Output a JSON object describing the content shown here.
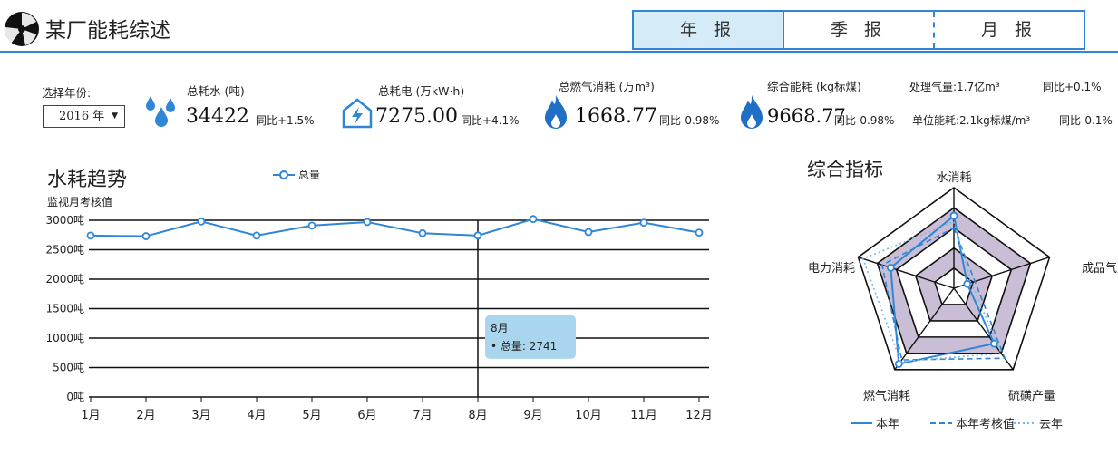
{
  "header": {
    "title": "某厂能耗综述",
    "tabs": [
      {
        "label": "年 报",
        "active": true
      },
      {
        "label": "季 报",
        "active": false
      },
      {
        "label": "月 报",
        "active": false
      }
    ]
  },
  "year_select": {
    "label": "选择年份:",
    "value": "2016 年"
  },
  "stats": {
    "water": {
      "label": "总耗水 (吨)",
      "value": "34422",
      "yoy": "同比+1.5%"
    },
    "power": {
      "label": "总耗电 (万kW·h)",
      "value": "7275.00",
      "yoy": "同比+4.1%"
    },
    "gas": {
      "label": "总燃气消耗 (万m³)",
      "value": "1668.77",
      "yoy": "同比-0.98%"
    },
    "total": {
      "label": "综合能耗 (kg标煤)",
      "value": "9668.77",
      "yoy": "同比-0.98%"
    },
    "processed_gas": {
      "label": "处理气量:1.7亿m³",
      "yoy": "同比+0.1%"
    },
    "unit_energy": {
      "label": "单位能耗:2.1kg标煤/m³",
      "yoy": "同比-0.1%"
    }
  },
  "colors": {
    "accent": "#2f86d6",
    "tab_active": "#d5ebf7",
    "tooltip": "#a9d6ee",
    "radar_fill": "#c9bed6"
  },
  "line_section": {
    "title": "水耗趋势",
    "subtitle": "监视月考核值",
    "legend": "总量"
  },
  "tooltip": {
    "title": "8月",
    "line": "• 总量: 2741"
  },
  "chart_data": [
    {
      "type": "line",
      "title": "水耗趋势",
      "ylabel": "监视月考核值",
      "categories": [
        "1月",
        "2月",
        "3月",
        "4月",
        "5月",
        "6月",
        "7月",
        "8月",
        "9月",
        "10月",
        "11月",
        "12月"
      ],
      "y_ticks": [
        "0吨",
        "500吨",
        "1000吨",
        "1500吨",
        "2000吨",
        "2500吨",
        "3000吨"
      ],
      "ylim": [
        0,
        3000
      ],
      "series": [
        {
          "name": "总量",
          "values": [
            2740,
            2730,
            2980,
            2740,
            2910,
            2970,
            2780,
            2741,
            3020,
            2800,
            2960,
            2790
          ]
        }
      ],
      "highlight_index": 7,
      "grid": true
    },
    {
      "type": "radar",
      "title": "综合指标",
      "axes": [
        "水消耗",
        "成品气量",
        "硫磺产量",
        "燃气消耗",
        "电力消耗"
      ],
      "levels": 5,
      "series": [
        {
          "name": "本年",
          "values": [
            0.72,
            0.14,
            0.68,
            0.93,
            0.66
          ],
          "style": "solid"
        },
        {
          "name": "本年考核值",
          "values": [
            0.6,
            0.22,
            0.86,
            0.88,
            0.75
          ],
          "style": "dashed"
        },
        {
          "name": "去年",
          "values": [
            0.66,
            0.18,
            0.8,
            0.9,
            0.95
          ],
          "style": "dotted"
        }
      ],
      "legend_position": "bottom"
    }
  ]
}
